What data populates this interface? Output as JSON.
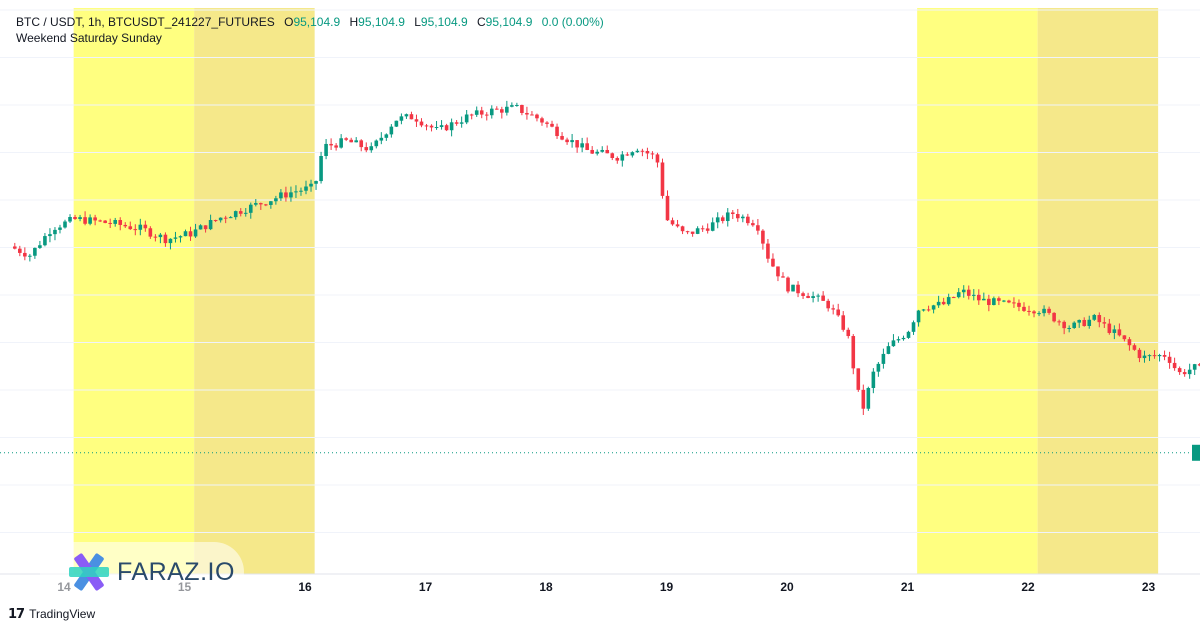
{
  "header": {
    "symbol": "BTC / USDT, 1h, BTCUSDT_241227_FUTURES",
    "o_label": "O",
    "o_value": "95,104.9",
    "h_label": "H",
    "h_value": "95,104.9",
    "l_label": "L",
    "l_value": "95,104.9",
    "c_label": "C",
    "c_value": "95,104.9",
    "change": "0.0 (0.00%)",
    "indicator": "Weekend Saturday Sunday"
  },
  "watermark": {
    "text": "FARAZ.IO"
  },
  "footer": {
    "logo": "17",
    "brand": "TradingView"
  },
  "colors": {
    "up": "#089981",
    "down": "#f23645",
    "saturday": "#ffff80",
    "sunday": "#f5e88a",
    "last_price_line": "#089981"
  },
  "chart_data": {
    "type": "candlestick",
    "timeframe": "1h",
    "x_tick_labels": [
      "14",
      "15",
      "16",
      "17",
      "18",
      "19",
      "20",
      "21",
      "22",
      "23"
    ],
    "highlight_ranges": [
      {
        "name": "Saturday",
        "start_day": 14.08,
        "end_day": 15.08
      },
      {
        "name": "Sunday",
        "start_day": 15.08,
        "end_day": 16.08
      },
      {
        "name": "Saturday",
        "start_day": 21.08,
        "end_day": 22.08
      },
      {
        "name": "Sunday",
        "start_day": 22.08,
        "end_day": 23.08
      }
    ],
    "price_range_approx": [
      92500,
      108500
    ],
    "last_price": 95104.9,
    "close_path_approx": [
      [
        13.55,
        102250
      ],
      [
        13.72,
        101950
      ],
      [
        13.9,
        102900
      ],
      [
        14.1,
        103200
      ],
      [
        14.4,
        103050
      ],
      [
        14.65,
        102850
      ],
      [
        14.85,
        102500
      ],
      [
        15.05,
        102700
      ],
      [
        15.3,
        103250
      ],
      [
        15.6,
        103700
      ],
      [
        15.9,
        104150
      ],
      [
        16.08,
        104300
      ],
      [
        16.15,
        105700
      ],
      [
        16.35,
        105900
      ],
      [
        16.55,
        105600
      ],
      [
        16.75,
        106650
      ],
      [
        16.9,
        106750
      ],
      [
        17.1,
        106250
      ],
      [
        17.35,
        106750
      ],
      [
        17.55,
        106950
      ],
      [
        17.75,
        107050
      ],
      [
        17.95,
        106650
      ],
      [
        18.15,
        106050
      ],
      [
        18.35,
        105550
      ],
      [
        18.6,
        105350
      ],
      [
        18.75,
        105700
      ],
      [
        18.92,
        105300
      ],
      [
        19.0,
        103200
      ],
      [
        19.15,
        102650
      ],
      [
        19.35,
        102950
      ],
      [
        19.55,
        103400
      ],
      [
        19.75,
        103050
      ],
      [
        19.85,
        101800
      ],
      [
        20.0,
        100850
      ],
      [
        20.2,
        100550
      ],
      [
        20.35,
        100200
      ],
      [
        20.5,
        99250
      ],
      [
        20.62,
        96500
      ],
      [
        20.72,
        97900
      ],
      [
        20.85,
        98800
      ],
      [
        21.0,
        99300
      ],
      [
        21.1,
        100150
      ],
      [
        21.3,
        100250
      ],
      [
        21.45,
        100700
      ],
      [
        21.6,
        100400
      ],
      [
        21.8,
        100250
      ],
      [
        22.1,
        100050
      ],
      [
        22.35,
        99450
      ],
      [
        22.55,
        99750
      ],
      [
        22.75,
        99150
      ],
      [
        22.95,
        98400
      ],
      [
        23.15,
        98500
      ],
      [
        23.25,
        97850
      ],
      [
        23.38,
        98050
      ],
      [
        23.45,
        97950
      ]
    ]
  }
}
